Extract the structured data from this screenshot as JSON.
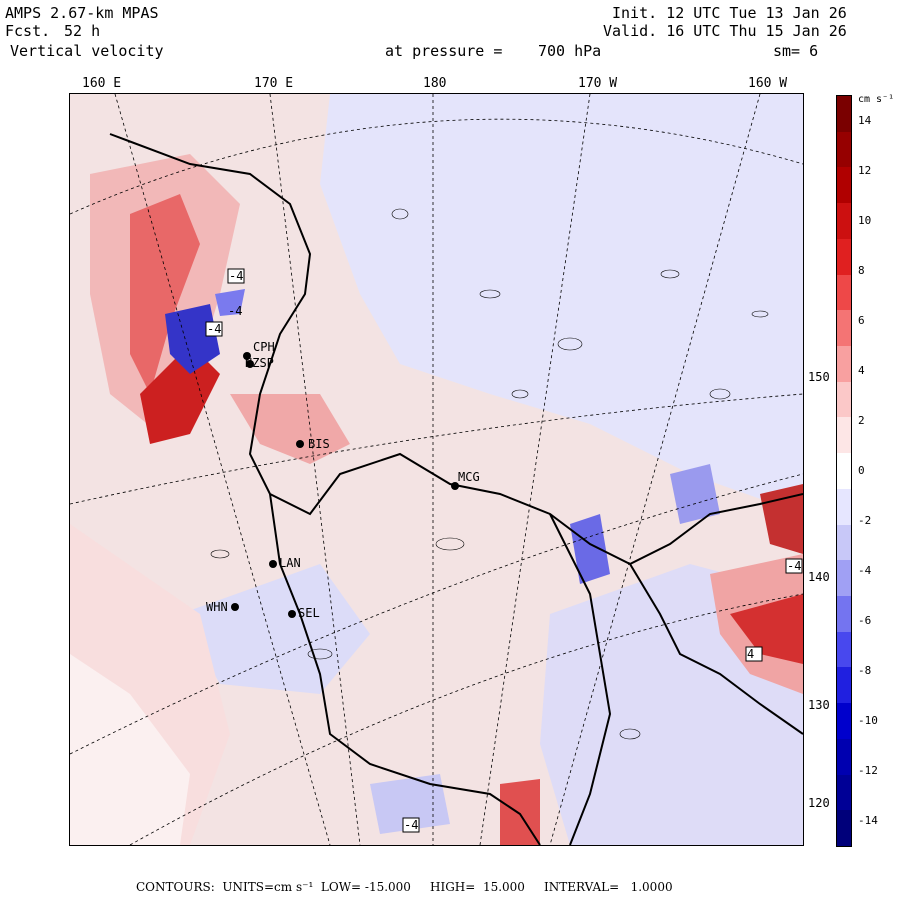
{
  "header": {
    "model": "AMPS 2.67-km MPAS",
    "fcst_label": "Fcst.",
    "fcst_value": "52 h",
    "field": "Vertical velocity",
    "init": "Init. 12 UTC Tue 13 Jan 26",
    "valid": "Valid. 16 UTC Thu 15 Jan 26",
    "pressure_label": "at pressure =",
    "pressure_value": "700 hPa",
    "smoothing": "sm= 6"
  },
  "longitude_labels": [
    "160 E",
    "170 E",
    "180",
    "170 W",
    "160 W"
  ],
  "latitude_labels": [
    "150 W",
    "140 W",
    "130 W",
    "120 W"
  ],
  "stations": [
    "CPH",
    "NZSP",
    "BIS",
    "MCG",
    "LAN",
    "WHN",
    "SEL"
  ],
  "contour_labels": [
    "-4",
    "-4",
    "-4",
    "4",
    "-4",
    "-4"
  ],
  "colorbar": {
    "units": "cm s⁻¹",
    "ticks": [
      "14",
      "12",
      "10",
      "8",
      "6",
      "4",
      "2",
      "0",
      "-2",
      "-4",
      "-6",
      "-8",
      "-10",
      "-12",
      "-14"
    ],
    "colors": [
      "#7a0000",
      "#960000",
      "#b00000",
      "#cc1010",
      "#e02020",
      "#ee4848",
      "#f47474",
      "#f8a0a0",
      "#fbc8c8",
      "#fde6e6",
      "#ffffff",
      "#e6e6ff",
      "#c8c8f8",
      "#a0a0f4",
      "#7474f0",
      "#4848ee",
      "#2020e0",
      "#0000cc",
      "#0000b0",
      "#000096",
      "#00007a"
    ]
  },
  "footer": {
    "contours": "CONTOURS:  UNITS=cm s⁻¹  LOW= -15.000     HIGH=  15.000     INTERVAL=   1.0000"
  },
  "map_colors": {
    "positive_light": "#f7d4d4",
    "positive_mid": "#ef8f8f",
    "positive_strong": "#c81818",
    "negative_light": "#dcdcf8",
    "negative_mid": "#9a9aee",
    "negative_strong": "#1818c0",
    "coast": "#000000"
  }
}
